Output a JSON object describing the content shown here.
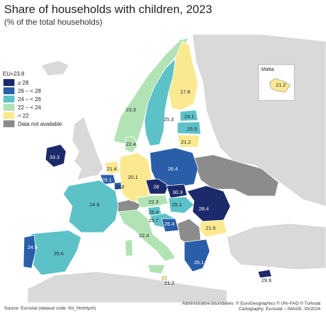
{
  "title": "Share of households with children, 2023",
  "subtitle": "(% of the total households)",
  "legend": {
    "eu_label": "EU=23.8",
    "items": [
      {
        "label": "≥ 28",
        "color": "#1c2a6b"
      },
      {
        "label": "26 – < 28",
        "color": "#2a5ea8"
      },
      {
        "label": "24 – < 26",
        "color": "#5cc2c8"
      },
      {
        "label": "22 – < 24",
        "color": "#b2e3b4"
      },
      {
        "label": "< 22",
        "color": "#fbe991"
      },
      {
        "label": "Data not available",
        "color": "#8c8c8c"
      }
    ]
  },
  "inset": {
    "title": "Malta",
    "value": "21.2"
  },
  "values": {
    "finland": "17.8",
    "sweden": "25.3",
    "norway": "23.3",
    "denmark": "22.4",
    "estonia": "24.1",
    "latvia": "25.5",
    "lithuania": "21.2",
    "ireland": "33.3",
    "netherlands": "21.4",
    "belgium": "26.1",
    "luxembourg": "26.3",
    "germany": "20.1",
    "poland": "26.4",
    "czechia": "28",
    "slovakia": "30.3",
    "austria": "22.3",
    "hungary": "25.1",
    "slovenia": "25.4",
    "croatia": "25.7",
    "romania": "28.4",
    "bulgaria": "21.6",
    "bosnia": "26.4",
    "france": "24.9",
    "italy": "22.4",
    "spain": "25.6",
    "portugal": "24.9",
    "greece": "26.1",
    "cyprus": "29.9",
    "malta_main": "21.2"
  },
  "footer": {
    "source": "Source: Eurostat (dataset code: lfst_hhnhtych)",
    "credit1": "Administrative boundaries: © EuroGeographics © UN–FAO © Turkstat",
    "credit2": "Cartography: Eurostat – IMAGE, 05/2024"
  }
}
